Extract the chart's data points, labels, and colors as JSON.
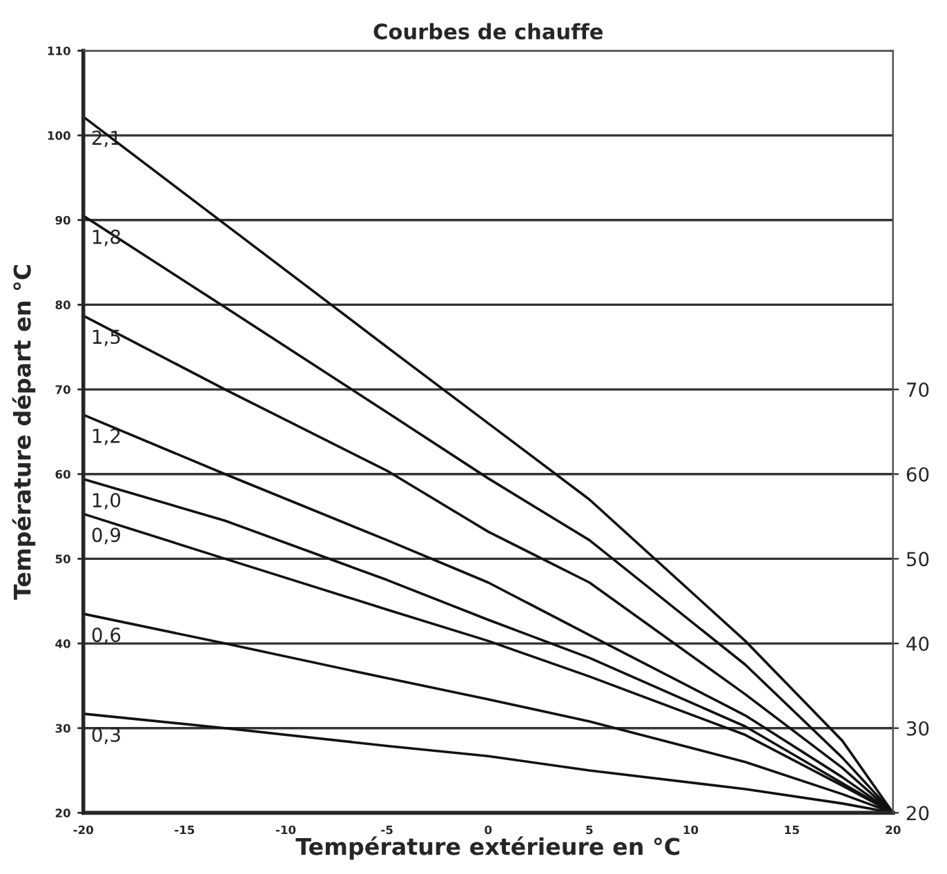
{
  "chart_data": {
    "type": "line",
    "title": "Courbes de chauffe",
    "xlabel": "Température extérieure en °C",
    "ylabel": "Température départ en °C",
    "x": [
      -20,
      -13,
      -5,
      0,
      5,
      12.7,
      17.5,
      20
    ],
    "xlim": [
      -20,
      20
    ],
    "xticks": [
      -20,
      -15,
      -10,
      -5,
      0,
      5,
      10,
      15,
      20
    ],
    "ylim": [
      20,
      110
    ],
    "yticks": [
      20,
      30,
      40,
      50,
      60,
      70,
      80,
      90,
      100,
      110
    ],
    "y2lim": [
      20,
      110
    ],
    "y2ticks": [
      20,
      30,
      40,
      50,
      60,
      70
    ],
    "grid": "y",
    "marker": "none",
    "line_style": "solid",
    "legend": false,
    "series": [
      {
        "name": "2,1",
        "color": "#111111",
        "values": [
          102.2,
          89.5,
          75,
          66,
          57,
          40.3,
          28.5,
          20
        ]
      },
      {
        "name": "1,8",
        "color": "#111111",
        "values": [
          90.5,
          79.7,
          67.3,
          59.5,
          52.2,
          37.5,
          26.5,
          20
        ]
      },
      {
        "name": "1,5",
        "color": "#111111",
        "values": [
          78.7,
          70,
          60.4,
          53.2,
          47.2,
          34,
          25.3,
          20
        ]
      },
      {
        "name": "1,2",
        "color": "#111111",
        "values": [
          67,
          60,
          52.2,
          47.2,
          41,
          31.5,
          24.2,
          20
        ]
      },
      {
        "name": "1,0",
        "color": "#111111",
        "values": [
          59.4,
          54.5,
          47.5,
          42.8,
          38.3,
          30.2,
          23.5,
          20
        ]
      },
      {
        "name": "0,9",
        "color": "#111111",
        "values": [
          55.3,
          50,
          44,
          40.3,
          36.1,
          29.2,
          23.2,
          20
        ]
      },
      {
        "name": "0,6",
        "color": "#111111",
        "values": [
          43.5,
          40,
          35.9,
          33.4,
          30.8,
          26,
          22.2,
          20
        ]
      },
      {
        "name": "0,3",
        "color": "#111111",
        "values": [
          31.7,
          30,
          27.9,
          26.7,
          25,
          22.8,
          21.1,
          20
        ]
      }
    ]
  }
}
